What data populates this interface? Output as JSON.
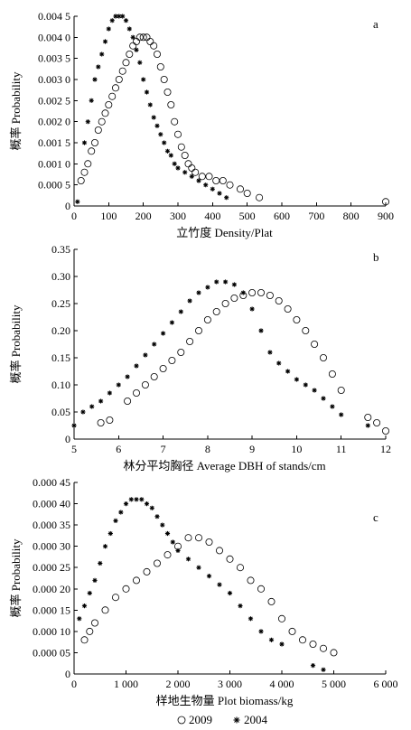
{
  "chart_data": [
    {
      "type": "scatter",
      "panel_label": "a",
      "title": "",
      "xlabel": "立竹度 Density/Plat",
      "ylabel": "概率 Probability",
      "xlim": [
        0,
        900
      ],
      "ylim": [
        0,
        0.0045
      ],
      "x_ticks": [
        "0",
        "100",
        "200",
        "300",
        "400",
        "500",
        "600",
        "700",
        "800",
        "900"
      ],
      "y_ticks": [
        "0",
        "0.000 5",
        "0.001 0",
        "0.001 5",
        "0.002 0",
        "0.002 5",
        "0.003 0",
        "0.003 5",
        "0.004 0",
        "0.004 5"
      ],
      "series": [
        {
          "name": "2009",
          "marker": "circle",
          "points": [
            [
              20,
              0.0006
            ],
            [
              30,
              0.0008
            ],
            [
              40,
              0.001
            ],
            [
              50,
              0.0013
            ],
            [
              60,
              0.0015
            ],
            [
              70,
              0.0018
            ],
            [
              80,
              0.002
            ],
            [
              90,
              0.0022
            ],
            [
              100,
              0.0024
            ],
            [
              110,
              0.0026
            ],
            [
              120,
              0.0028
            ],
            [
              130,
              0.003
            ],
            [
              140,
              0.0032
            ],
            [
              150,
              0.0034
            ],
            [
              160,
              0.0036
            ],
            [
              170,
              0.0038
            ],
            [
              180,
              0.0039
            ],
            [
              190,
              0.004
            ],
            [
              200,
              0.004
            ],
            [
              210,
              0.004
            ],
            [
              220,
              0.0039
            ],
            [
              230,
              0.0038
            ],
            [
              240,
              0.0036
            ],
            [
              250,
              0.0033
            ],
            [
              260,
              0.003
            ],
            [
              270,
              0.0027
            ],
            [
              280,
              0.0024
            ],
            [
              290,
              0.002
            ],
            [
              300,
              0.0017
            ],
            [
              310,
              0.0014
            ],
            [
              320,
              0.0012
            ],
            [
              330,
              0.001
            ],
            [
              340,
              0.0009
            ],
            [
              350,
              0.0008
            ],
            [
              370,
              0.0007
            ],
            [
              390,
              0.0007
            ],
            [
              410,
              0.0006
            ],
            [
              430,
              0.0006
            ],
            [
              450,
              0.0005
            ],
            [
              480,
              0.0004
            ],
            [
              500,
              0.0003
            ],
            [
              535,
              0.0002
            ],
            [
              900,
              0.0001
            ]
          ]
        },
        {
          "name": "2004",
          "marker": "star",
          "points": [
            [
              10,
              0.0001
            ],
            [
              30,
              0.0015
            ],
            [
              40,
              0.002
            ],
            [
              50,
              0.0025
            ],
            [
              60,
              0.003
            ],
            [
              70,
              0.0033
            ],
            [
              80,
              0.0036
            ],
            [
              90,
              0.0039
            ],
            [
              100,
              0.0042
            ],
            [
              110,
              0.0044
            ],
            [
              120,
              0.0045
            ],
            [
              130,
              0.0045
            ],
            [
              140,
              0.0045
            ],
            [
              150,
              0.0044
            ],
            [
              160,
              0.0042
            ],
            [
              170,
              0.004
            ],
            [
              180,
              0.0037
            ],
            [
              190,
              0.0034
            ],
            [
              200,
              0.003
            ],
            [
              210,
              0.0027
            ],
            [
              220,
              0.0024
            ],
            [
              230,
              0.0021
            ],
            [
              240,
              0.0019
            ],
            [
              250,
              0.0017
            ],
            [
              260,
              0.0015
            ],
            [
              270,
              0.0013
            ],
            [
              280,
              0.0012
            ],
            [
              290,
              0.001
            ],
            [
              300,
              0.0009
            ],
            [
              320,
              0.0008
            ],
            [
              340,
              0.0007
            ],
            [
              360,
              0.0006
            ],
            [
              380,
              0.0005
            ],
            [
              400,
              0.0004
            ],
            [
              420,
              0.0003
            ],
            [
              440,
              0.0002
            ]
          ]
        }
      ]
    },
    {
      "type": "scatter",
      "panel_label": "b",
      "title": "",
      "xlabel": "林分平均胸径 Average DBH of stands/cm",
      "ylabel": "概率 Probability",
      "xlim": [
        5,
        12
      ],
      "ylim": [
        0,
        0.35
      ],
      "x_ticks": [
        "5",
        "6",
        "7",
        "8",
        "9",
        "10",
        "11",
        "12"
      ],
      "y_ticks": [
        "0",
        "0.05",
        "0.10",
        "0.15",
        "0.20",
        "0.25",
        "0.30",
        "0.35"
      ],
      "series": [
        {
          "name": "2009",
          "marker": "circle",
          "points": [
            [
              5.6,
              0.03
            ],
            [
              5.8,
              0.035
            ],
            [
              6.2,
              0.07
            ],
            [
              6.4,
              0.085
            ],
            [
              6.6,
              0.1
            ],
            [
              6.8,
              0.115
            ],
            [
              7.0,
              0.13
            ],
            [
              7.2,
              0.145
            ],
            [
              7.4,
              0.16
            ],
            [
              7.6,
              0.18
            ],
            [
              7.8,
              0.2
            ],
            [
              8.0,
              0.22
            ],
            [
              8.2,
              0.235
            ],
            [
              8.4,
              0.25
            ],
            [
              8.6,
              0.26
            ],
            [
              8.8,
              0.265
            ],
            [
              9.0,
              0.27
            ],
            [
              9.2,
              0.27
            ],
            [
              9.4,
              0.265
            ],
            [
              9.6,
              0.255
            ],
            [
              9.8,
              0.24
            ],
            [
              10.0,
              0.22
            ],
            [
              10.2,
              0.2
            ],
            [
              10.4,
              0.175
            ],
            [
              10.6,
              0.15
            ],
            [
              10.8,
              0.12
            ],
            [
              11.0,
              0.09
            ],
            [
              11.6,
              0.04
            ],
            [
              11.8,
              0.03
            ],
            [
              12.0,
              0.015
            ]
          ]
        },
        {
          "name": "2004",
          "marker": "star",
          "points": [
            [
              5.0,
              0.025
            ],
            [
              5.2,
              0.05
            ],
            [
              5.4,
              0.06
            ],
            [
              5.6,
              0.07
            ],
            [
              5.8,
              0.085
            ],
            [
              6.0,
              0.1
            ],
            [
              6.2,
              0.115
            ],
            [
              6.4,
              0.135
            ],
            [
              6.6,
              0.155
            ],
            [
              6.8,
              0.175
            ],
            [
              7.0,
              0.195
            ],
            [
              7.2,
              0.215
            ],
            [
              7.4,
              0.235
            ],
            [
              7.6,
              0.255
            ],
            [
              7.8,
              0.27
            ],
            [
              8.0,
              0.28
            ],
            [
              8.2,
              0.29
            ],
            [
              8.4,
              0.29
            ],
            [
              8.6,
              0.285
            ],
            [
              8.8,
              0.27
            ],
            [
              9.0,
              0.24
            ],
            [
              9.2,
              0.2
            ],
            [
              9.4,
              0.16
            ],
            [
              9.6,
              0.14
            ],
            [
              9.8,
              0.125
            ],
            [
              10.0,
              0.11
            ],
            [
              10.2,
              0.1
            ],
            [
              10.4,
              0.09
            ],
            [
              10.6,
              0.075
            ],
            [
              10.8,
              0.06
            ],
            [
              11.0,
              0.045
            ],
            [
              11.6,
              0.025
            ]
          ]
        }
      ]
    },
    {
      "type": "scatter",
      "panel_label": "c",
      "title": "",
      "xlabel": "样地生物量 Plot biomass/kg",
      "ylabel": "概率 Probability",
      "xlim": [
        0,
        6000
      ],
      "ylim": [
        0,
        0.00045
      ],
      "x_ticks": [
        "0",
        "1 000",
        "2 000",
        "3 000",
        "4 000",
        "5 000",
        "6 000"
      ],
      "y_ticks": [
        "0",
        "0.000 05",
        "0.000 10",
        "0.000 15",
        "0.000 20",
        "0.000 25",
        "0.000 30",
        "0.000 35",
        "0.000 40",
        "0.000 45"
      ],
      "series": [
        {
          "name": "2009",
          "marker": "circle",
          "points": [
            [
              200,
              8e-05
            ],
            [
              300,
              0.0001
            ],
            [
              400,
              0.00012
            ],
            [
              600,
              0.00015
            ],
            [
              800,
              0.00018
            ],
            [
              1000,
              0.0002
            ],
            [
              1200,
              0.00022
            ],
            [
              1400,
              0.00024
            ],
            [
              1600,
              0.00026
            ],
            [
              1800,
              0.00028
            ],
            [
              2000,
              0.0003
            ],
            [
              2200,
              0.00032
            ],
            [
              2400,
              0.00032
            ],
            [
              2600,
              0.00031
            ],
            [
              2800,
              0.00029
            ],
            [
              3000,
              0.00027
            ],
            [
              3200,
              0.00025
            ],
            [
              3400,
              0.00022
            ],
            [
              3600,
              0.0002
            ],
            [
              3800,
              0.00017
            ],
            [
              4000,
              0.00013
            ],
            [
              4200,
              0.0001
            ],
            [
              4400,
              8e-05
            ],
            [
              4600,
              7e-05
            ],
            [
              4800,
              6e-05
            ],
            [
              5000,
              5e-05
            ]
          ]
        },
        {
          "name": "2004",
          "marker": "star",
          "points": [
            [
              100,
              0.00013
            ],
            [
              200,
              0.00016
            ],
            [
              300,
              0.00019
            ],
            [
              400,
              0.00022
            ],
            [
              500,
              0.00026
            ],
            [
              600,
              0.0003
            ],
            [
              700,
              0.00033
            ],
            [
              800,
              0.00036
            ],
            [
              900,
              0.00038
            ],
            [
              1000,
              0.0004
            ],
            [
              1100,
              0.00041
            ],
            [
              1200,
              0.00041
            ],
            [
              1300,
              0.00041
            ],
            [
              1400,
              0.0004
            ],
            [
              1500,
              0.00039
            ],
            [
              1600,
              0.00037
            ],
            [
              1700,
              0.00035
            ],
            [
              1800,
              0.00033
            ],
            [
              1900,
              0.00031
            ],
            [
              2000,
              0.00029
            ],
            [
              2200,
              0.00027
            ],
            [
              2400,
              0.00025
            ],
            [
              2600,
              0.00023
            ],
            [
              2800,
              0.00021
            ],
            [
              3000,
              0.00019
            ],
            [
              3200,
              0.00016
            ],
            [
              3400,
              0.00013
            ],
            [
              3600,
              0.0001
            ],
            [
              3800,
              8e-05
            ],
            [
              4000,
              7e-05
            ],
            [
              4600,
              2e-05
            ],
            [
              4800,
              1e-05
            ]
          ]
        }
      ]
    }
  ],
  "legend": {
    "items": [
      {
        "symbol": "○",
        "label": "2009"
      },
      {
        "symbol": "*",
        "label": "2004"
      }
    ]
  }
}
